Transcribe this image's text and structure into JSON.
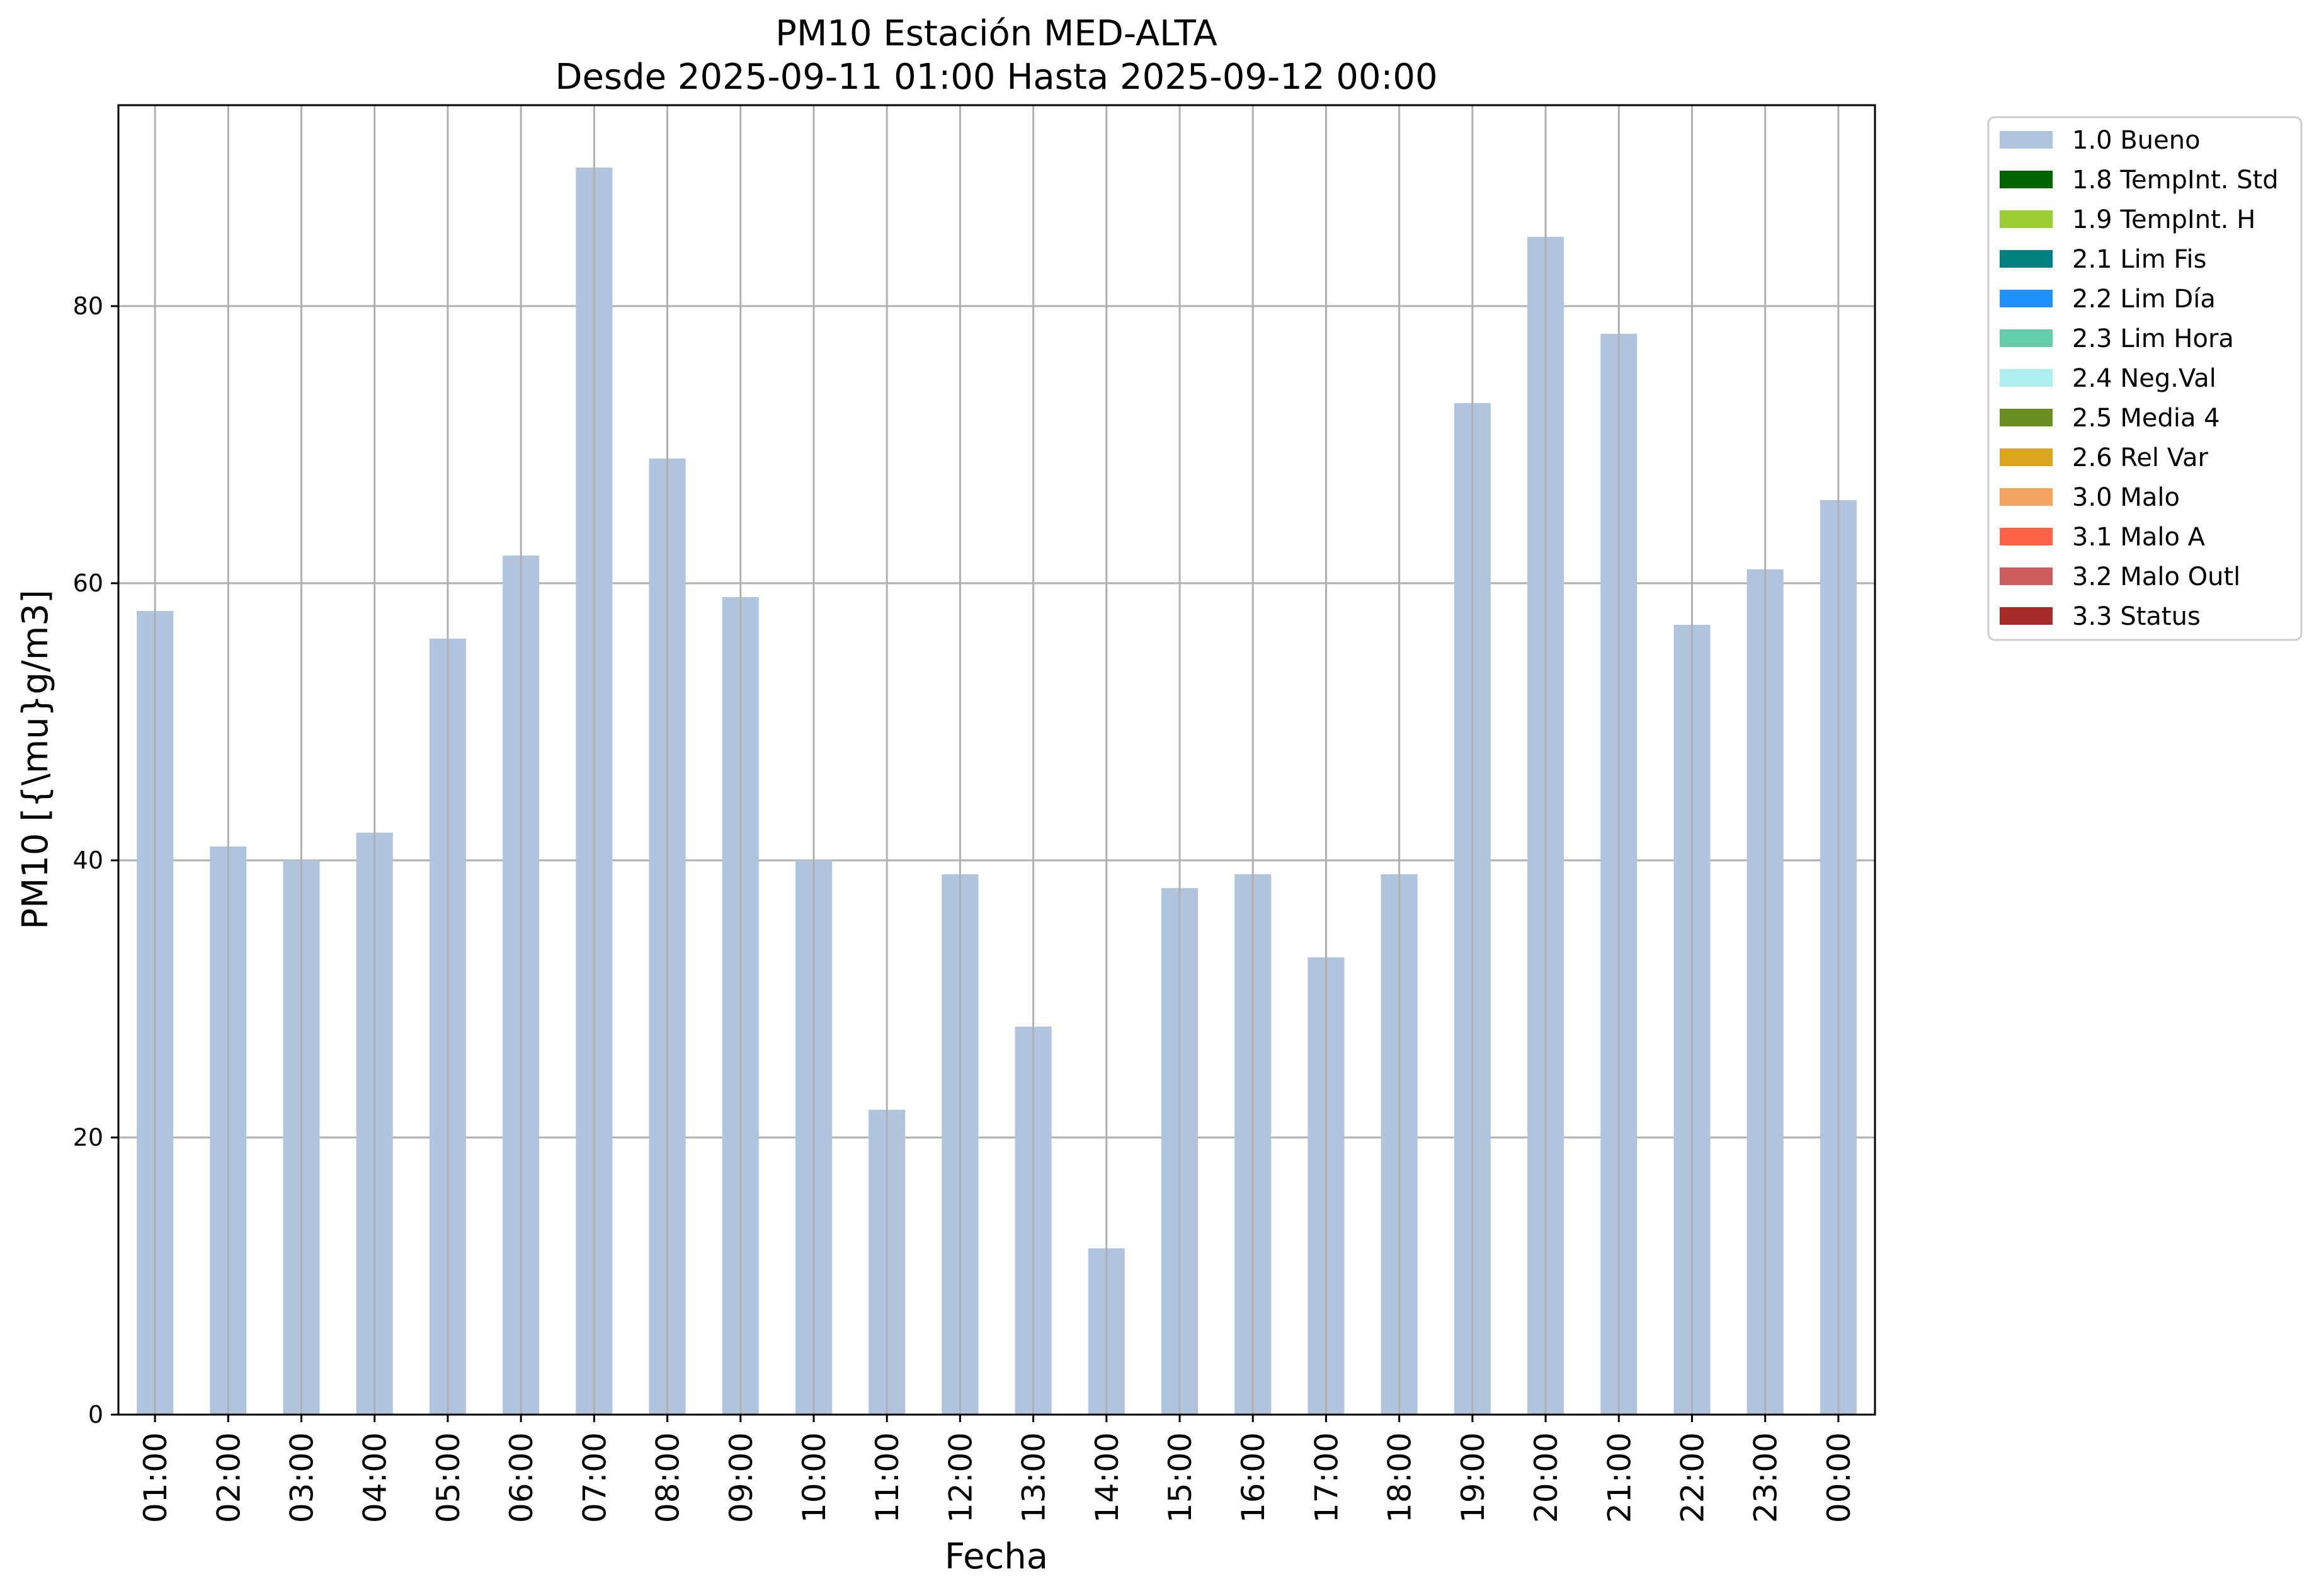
{
  "chart_data": {
    "type": "bar",
    "title": "PM10 Estación MED-ALTA",
    "subtitle": "Desde 2025-09-11 01:00 Hasta 2025-09-12 00:00",
    "xlabel": "Fecha",
    "ylabel": "PM10 [{\\mu}g/m3]",
    "ylim": [
      0,
      94.5
    ],
    "yticks": [
      0,
      20,
      40,
      60,
      80
    ],
    "grid": true,
    "legend_position": "outside-top-right",
    "categories": [
      "01:00",
      "02:00",
      "03:00",
      "04:00",
      "05:00",
      "06:00",
      "07:00",
      "08:00",
      "09:00",
      "10:00",
      "11:00",
      "12:00",
      "13:00",
      "14:00",
      "15:00",
      "16:00",
      "17:00",
      "18:00",
      "19:00",
      "20:00",
      "21:00",
      "22:00",
      "23:00",
      "00:00"
    ],
    "series": [
      {
        "name": "1.0 Bueno",
        "color": "#b0c4de",
        "values": [
          58,
          41,
          40,
          42,
          56,
          62,
          90,
          69,
          59,
          40,
          22,
          39,
          28,
          12,
          38,
          39,
          33,
          39,
          73,
          85,
          78,
          57,
          61,
          66
        ]
      }
    ],
    "legend": [
      {
        "label": "1.0 Bueno",
        "color": "#b0c4de"
      },
      {
        "label": "1.8 TempInt. Std",
        "color": "#006400"
      },
      {
        "label": "1.9 TempInt. H",
        "color": "#9acd32"
      },
      {
        "label": "2.1 Lim Fis",
        "color": "#008080"
      },
      {
        "label": "2.2 Lim Día",
        "color": "#1e90ff"
      },
      {
        "label": "2.3 Lim Hora",
        "color": "#66cdaa"
      },
      {
        "label": "2.4 Neg.Val",
        "color": "#afeeee"
      },
      {
        "label": "2.5 Media 4",
        "color": "#6b8e23"
      },
      {
        "label": "2.6 Rel Var",
        "color": "#daa520"
      },
      {
        "label": "3.0 Malo",
        "color": "#f4a460"
      },
      {
        "label": "3.1 Malo A",
        "color": "#ff6347"
      },
      {
        "label": "3.2 Malo Outl",
        "color": "#cd5c5c"
      },
      {
        "label": "3.3 Status",
        "color": "#a52a2a"
      }
    ]
  }
}
